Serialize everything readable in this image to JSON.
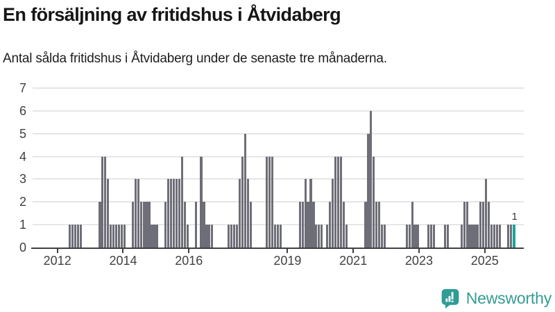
{
  "header": {
    "title": "En försäljning av fritidshus i Åtvidaberg",
    "subtitle": "Antal sålda fritidshus i Åtvidaberg under de senaste tre månaderna."
  },
  "chart_data": {
    "type": "bar",
    "title": "En försäljning av fritidshus i Åtvidaberg",
    "xlabel": "",
    "ylabel": "",
    "ylim": [
      0,
      7
    ],
    "yticks": [
      0,
      1,
      2,
      3,
      4,
      5,
      6,
      7
    ],
    "xtick_years": [
      2012,
      2014,
      2016,
      2019,
      2021,
      2023,
      2025
    ],
    "grid": "horizontal",
    "legend": "none",
    "bar_color": "#6e6e78",
    "highlight_color": "#1aa39b",
    "annotation": {
      "text": "1"
    },
    "points": [
      {
        "y": 2012,
        "m": 5,
        "v": 1
      },
      {
        "y": 2012,
        "m": 6,
        "v": 1
      },
      {
        "y": 2012,
        "m": 7,
        "v": 1
      },
      {
        "y": 2012,
        "m": 8,
        "v": 1
      },
      {
        "y": 2012,
        "m": 9,
        "v": 1
      },
      {
        "y": 2013,
        "m": 4,
        "v": 2
      },
      {
        "y": 2013,
        "m": 5,
        "v": 4
      },
      {
        "y": 2013,
        "m": 6,
        "v": 4
      },
      {
        "y": 2013,
        "m": 7,
        "v": 3
      },
      {
        "y": 2013,
        "m": 8,
        "v": 1
      },
      {
        "y": 2013,
        "m": 9,
        "v": 1
      },
      {
        "y": 2013,
        "m": 10,
        "v": 1
      },
      {
        "y": 2013,
        "m": 11,
        "v": 1
      },
      {
        "y": 2013,
        "m": 12,
        "v": 1
      },
      {
        "y": 2014,
        "m": 1,
        "v": 1
      },
      {
        "y": 2014,
        "m": 4,
        "v": 2
      },
      {
        "y": 2014,
        "m": 5,
        "v": 3
      },
      {
        "y": 2014,
        "m": 6,
        "v": 3
      },
      {
        "y": 2014,
        "m": 7,
        "v": 2
      },
      {
        "y": 2014,
        "m": 8,
        "v": 2
      },
      {
        "y": 2014,
        "m": 9,
        "v": 2
      },
      {
        "y": 2014,
        "m": 10,
        "v": 2
      },
      {
        "y": 2014,
        "m": 11,
        "v": 1
      },
      {
        "y": 2014,
        "m": 12,
        "v": 1
      },
      {
        "y": 2015,
        "m": 1,
        "v": 1
      },
      {
        "y": 2015,
        "m": 4,
        "v": 2
      },
      {
        "y": 2015,
        "m": 5,
        "v": 3
      },
      {
        "y": 2015,
        "m": 6,
        "v": 3
      },
      {
        "y": 2015,
        "m": 7,
        "v": 3
      },
      {
        "y": 2015,
        "m": 8,
        "v": 3
      },
      {
        "y": 2015,
        "m": 9,
        "v": 3
      },
      {
        "y": 2015,
        "m": 10,
        "v": 4
      },
      {
        "y": 2015,
        "m": 11,
        "v": 2
      },
      {
        "y": 2015,
        "m": 12,
        "v": 1
      },
      {
        "y": 2016,
        "m": 3,
        "v": 2
      },
      {
        "y": 2016,
        "m": 5,
        "v": 4
      },
      {
        "y": 2016,
        "m": 6,
        "v": 2
      },
      {
        "y": 2016,
        "m": 7,
        "v": 1
      },
      {
        "y": 2016,
        "m": 8,
        "v": 1
      },
      {
        "y": 2016,
        "m": 9,
        "v": 1
      },
      {
        "y": 2017,
        "m": 3,
        "v": 1
      },
      {
        "y": 2017,
        "m": 4,
        "v": 1
      },
      {
        "y": 2017,
        "m": 5,
        "v": 1
      },
      {
        "y": 2017,
        "m": 6,
        "v": 1
      },
      {
        "y": 2017,
        "m": 7,
        "v": 3
      },
      {
        "y": 2017,
        "m": 8,
        "v": 4
      },
      {
        "y": 2017,
        "m": 9,
        "v": 5
      },
      {
        "y": 2017,
        "m": 10,
        "v": 3
      },
      {
        "y": 2017,
        "m": 11,
        "v": 2
      },
      {
        "y": 2018,
        "m": 5,
        "v": 4
      },
      {
        "y": 2018,
        "m": 6,
        "v": 4
      },
      {
        "y": 2018,
        "m": 7,
        "v": 4
      },
      {
        "y": 2018,
        "m": 8,
        "v": 1
      },
      {
        "y": 2018,
        "m": 9,
        "v": 1
      },
      {
        "y": 2018,
        "m": 10,
        "v": 1
      },
      {
        "y": 2019,
        "m": 5,
        "v": 2
      },
      {
        "y": 2019,
        "m": 6,
        "v": 2
      },
      {
        "y": 2019,
        "m": 7,
        "v": 3
      },
      {
        "y": 2019,
        "m": 8,
        "v": 2
      },
      {
        "y": 2019,
        "m": 9,
        "v": 3
      },
      {
        "y": 2019,
        "m": 10,
        "v": 2
      },
      {
        "y": 2019,
        "m": 11,
        "v": 1
      },
      {
        "y": 2019,
        "m": 12,
        "v": 1
      },
      {
        "y": 2020,
        "m": 1,
        "v": 1
      },
      {
        "y": 2020,
        "m": 3,
        "v": 1
      },
      {
        "y": 2020,
        "m": 4,
        "v": 2
      },
      {
        "y": 2020,
        "m": 5,
        "v": 3
      },
      {
        "y": 2020,
        "m": 6,
        "v": 4
      },
      {
        "y": 2020,
        "m": 7,
        "v": 4
      },
      {
        "y": 2020,
        "m": 8,
        "v": 4
      },
      {
        "y": 2020,
        "m": 9,
        "v": 2
      },
      {
        "y": 2020,
        "m": 10,
        "v": 1
      },
      {
        "y": 2021,
        "m": 5,
        "v": 2
      },
      {
        "y": 2021,
        "m": 6,
        "v": 5
      },
      {
        "y": 2021,
        "m": 7,
        "v": 6
      },
      {
        "y": 2021,
        "m": 8,
        "v": 4
      },
      {
        "y": 2021,
        "m": 9,
        "v": 2
      },
      {
        "y": 2021,
        "m": 10,
        "v": 2
      },
      {
        "y": 2021,
        "m": 11,
        "v": 1
      },
      {
        "y": 2021,
        "m": 12,
        "v": 1
      },
      {
        "y": 2022,
        "m": 8,
        "v": 1
      },
      {
        "y": 2022,
        "m": 9,
        "v": 1
      },
      {
        "y": 2022,
        "m": 10,
        "v": 2
      },
      {
        "y": 2022,
        "m": 11,
        "v": 1
      },
      {
        "y": 2022,
        "m": 12,
        "v": 1
      },
      {
        "y": 2023,
        "m": 4,
        "v": 1
      },
      {
        "y": 2023,
        "m": 5,
        "v": 1
      },
      {
        "y": 2023,
        "m": 6,
        "v": 1
      },
      {
        "y": 2023,
        "m": 10,
        "v": 1
      },
      {
        "y": 2023,
        "m": 11,
        "v": 1
      },
      {
        "y": 2024,
        "m": 4,
        "v": 1
      },
      {
        "y": 2024,
        "m": 5,
        "v": 2
      },
      {
        "y": 2024,
        "m": 6,
        "v": 2
      },
      {
        "y": 2024,
        "m": 7,
        "v": 1
      },
      {
        "y": 2024,
        "m": 8,
        "v": 1
      },
      {
        "y": 2024,
        "m": 9,
        "v": 1
      },
      {
        "y": 2024,
        "m": 10,
        "v": 1
      },
      {
        "y": 2024,
        "m": 11,
        "v": 2
      },
      {
        "y": 2024,
        "m": 12,
        "v": 2
      },
      {
        "y": 2025,
        "m": 1,
        "v": 3
      },
      {
        "y": 2025,
        "m": 2,
        "v": 2
      },
      {
        "y": 2025,
        "m": 3,
        "v": 1
      },
      {
        "y": 2025,
        "m": 4,
        "v": 1
      },
      {
        "y": 2025,
        "m": 5,
        "v": 1
      },
      {
        "y": 2025,
        "m": 6,
        "v": 1
      },
      {
        "y": 2025,
        "m": 9,
        "v": 1
      },
      {
        "y": 2025,
        "m": 10,
        "v": 1
      },
      {
        "y": 2025,
        "m": 11,
        "v": 1,
        "hl": true
      }
    ]
  },
  "footer": {
    "brand": "Newsworthy",
    "logo_icon": "newsworthy-barchart-bubble-icon"
  }
}
